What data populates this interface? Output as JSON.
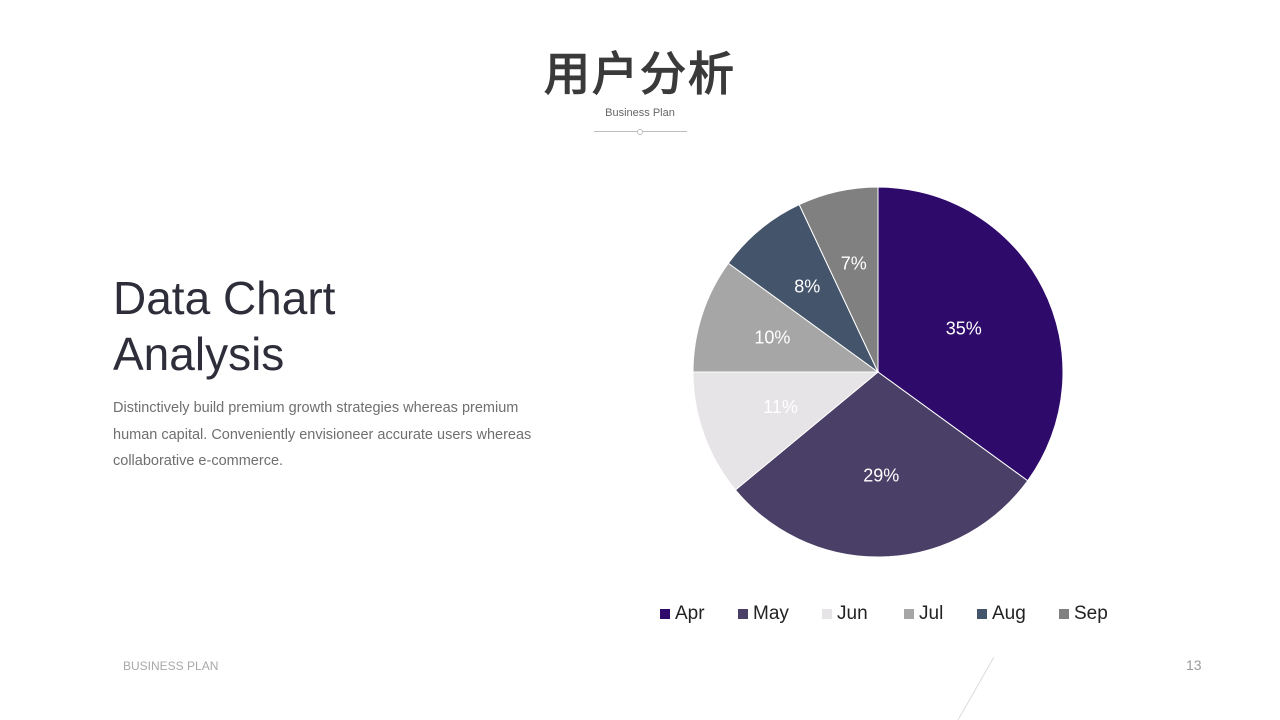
{
  "header": {
    "title": "用户分析",
    "subtitle": "Business Plan"
  },
  "content": {
    "heading_line1": "Data Chart",
    "heading_line2": "Analysis",
    "description": "Distinctively build premium growth strategies whereas premium human capital. Conveniently envisioneer accurate users whereas collaborative e-commerce."
  },
  "footer": {
    "label": "BUSINESS PLAN",
    "page_number": "13"
  },
  "chart_data": {
    "type": "pie",
    "categories": [
      "Apr",
      "May",
      "Jun",
      "Jul",
      "Aug",
      "Sep"
    ],
    "values": [
      35,
      29,
      11,
      10,
      8,
      7
    ],
    "labels": [
      "35%",
      "29%",
      "11%",
      "10%",
      "8%",
      "7%"
    ],
    "colors": [
      "#2e0a6b",
      "#4a3f66",
      "#e6e4e6",
      "#a6a6a6",
      "#44546a",
      "#808080"
    ],
    "label_colors": [
      "#ffffff",
      "#ffffff",
      "#ffffff",
      "#ffffff",
      "#ffffff",
      "#ffffff"
    ],
    "start_angle": "12 o'clock",
    "direction": "clockwise",
    "legend_position": "bottom"
  }
}
